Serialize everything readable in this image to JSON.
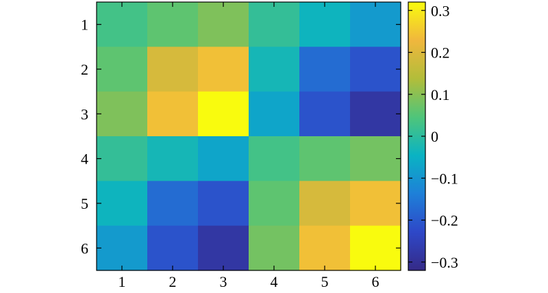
{
  "chart_data": {
    "type": "heatmap",
    "x": [
      "1",
      "2",
      "3",
      "4",
      "5",
      "6"
    ],
    "y": [
      "1",
      "2",
      "3",
      "4",
      "5",
      "6"
    ],
    "values": [
      [
        0.03,
        0.06,
        0.09,
        0.01,
        -0.04,
        -0.09
      ],
      [
        0.06,
        0.19,
        0.24,
        -0.03,
        -0.17,
        -0.21
      ],
      [
        0.09,
        0.24,
        0.32,
        -0.07,
        -0.21,
        -0.28
      ],
      [
        0.01,
        -0.03,
        -0.07,
        0.03,
        0.06,
        0.08
      ],
      [
        -0.04,
        -0.17,
        -0.21,
        0.06,
        0.19,
        0.24
      ],
      [
        -0.09,
        -0.21,
        -0.28,
        0.08,
        0.24,
        0.32
      ]
    ],
    "colorbar": {
      "min": -0.32,
      "max": 0.32,
      "ticks": [
        0.3,
        0.2,
        0.1,
        0,
        -0.1,
        -0.2,
        -0.3
      ],
      "tick_labels": [
        "0.3",
        "0.2",
        "0.1",
        "0",
        "−0.1",
        "−0.2",
        "−0.3"
      ]
    },
    "colormap": [
      "#352a87",
      "#2e48c8",
      "#1e80d8",
      "#0ab3c3",
      "#4fc57a",
      "#b2bd3a",
      "#f0b73d",
      "#f9fb0e"
    ],
    "title": "",
    "xlabel": "",
    "ylabel": "",
    "grid": false
  }
}
